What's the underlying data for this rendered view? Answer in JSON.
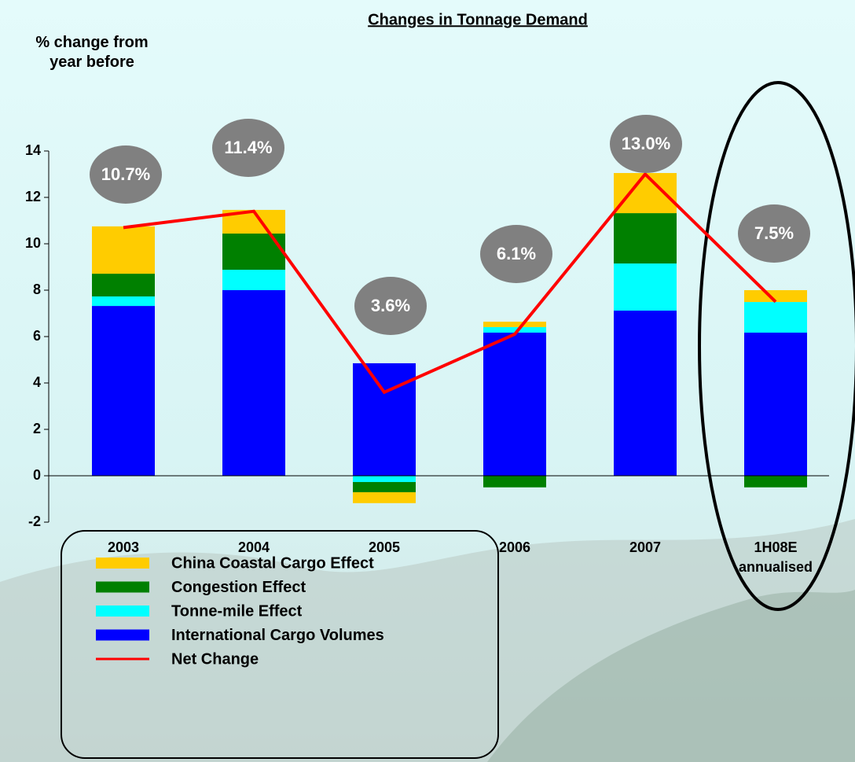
{
  "chart_data": {
    "type": "bar",
    "title": "Changes in Tonnage Demand",
    "y_label": "% change from year before",
    "categories": [
      "2003",
      "2004",
      "2005",
      "2006",
      "2007",
      "1H08E annualised"
    ],
    "ylim": [
      -2,
      14
    ],
    "yticks": [
      -2,
      0,
      2,
      4,
      6,
      8,
      10,
      12,
      14
    ],
    "stacked": true,
    "series": [
      {
        "name": "International Cargo Volumes",
        "color": "#0000ff",
        "values": [
          7.32,
          8.0,
          4.85,
          6.17,
          7.12,
          6.17
        ]
      },
      {
        "name": "Tonne-mile Effect",
        "color": "#00ffff",
        "values": [
          0.41,
          0.88,
          -0.27,
          0.24,
          2.03,
          1.32
        ]
      },
      {
        "name": "Congestion Effect",
        "color": "#008000",
        "values": [
          0.98,
          1.56,
          -0.44,
          -0.5,
          2.17,
          -0.5
        ]
      },
      {
        "name": "China Coastal Cargo Effect",
        "color": "#ffcc00",
        "values": [
          2.04,
          1.02,
          -0.47,
          0.23,
          1.73,
          0.51
        ]
      },
      {
        "name": "Net Change",
        "type": "line",
        "color": "#ff0000",
        "values": [
          10.7,
          11.4,
          3.6,
          6.1,
          13.0,
          7.5
        ],
        "value_labels": [
          "10.7%",
          "11.4%",
          "3.6%",
          "6.1%",
          "13.0%",
          "7.5%"
        ]
      }
    ]
  }
}
